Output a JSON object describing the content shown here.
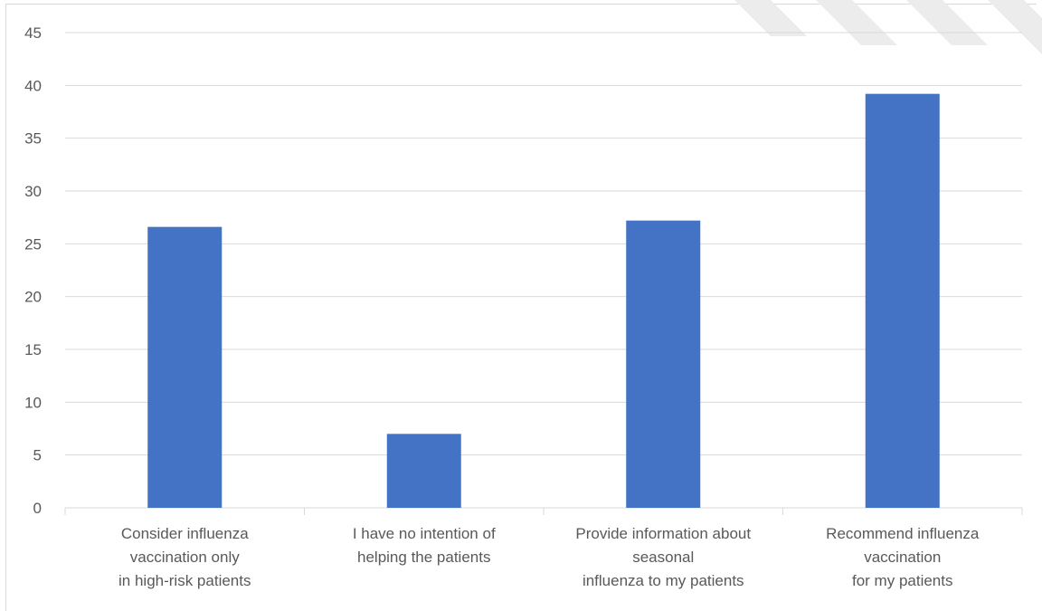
{
  "chart_data": {
    "type": "bar",
    "categories": [
      [
        "Consider influenza",
        "vaccination only",
        "in high-risk patients"
      ],
      [
        "I have no intention of",
        "helping the patients"
      ],
      [
        "Provide information about",
        "seasonal",
        "influenza to my patients"
      ],
      [
        "Recommend influenza",
        "vaccination",
        "for my patients"
      ]
    ],
    "values": [
      26.6,
      7.0,
      27.2,
      39.2
    ],
    "ylim": [
      0,
      45
    ],
    "yticks": [
      0,
      5,
      10,
      15,
      20,
      25,
      30,
      35,
      40,
      45
    ],
    "grid": true,
    "legend": "none",
    "colors": {
      "bar": "#4472C4",
      "grid": "#d9d9d9",
      "text": "#595959",
      "watermark": "#e6e6e6"
    }
  }
}
